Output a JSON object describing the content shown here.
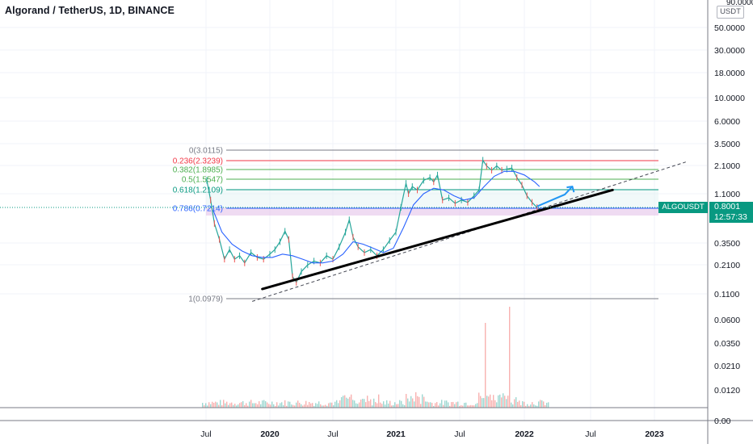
{
  "header": {
    "title": "Algorand / TetherUS, 1D, BINANCE",
    "currency_badge": "USDT"
  },
  "price_tag": {
    "symbol": "ALGOUSDT",
    "price": "0.8001",
    "countdown": "12:57:33",
    "color": "#089981"
  },
  "chart_data": {
    "type": "line",
    "title": "Algorand / TetherUS, 1D, BINANCE",
    "xlabel": "",
    "ylabel": "",
    "y_scale": "log",
    "x_tick_labels": [
      "Jul",
      "2020",
      "Jul",
      "2021",
      "Jul",
      "2022",
      "Jul",
      "2023"
    ],
    "y_tick_labels": [
      "90.0000",
      "50.0000",
      "30.0000",
      "18.0000",
      "10.0000",
      "6.0000",
      "3.5000",
      "2.1000",
      "1.1000",
      "0.3500",
      "0.2100",
      "0.1100"
    ],
    "volume_tick_labels": [
      "0.0600",
      "0.0350",
      "0.0210",
      "0.0120",
      "0.00"
    ],
    "fib_levels": [
      {
        "label": "0(3.0115)",
        "value": 3.0115,
        "color": "#787b86"
      },
      {
        "label": "0.236(2.3239)",
        "value": 2.3239,
        "color": "#f23645"
      },
      {
        "label": "0.382(1.8985)",
        "value": 1.8985,
        "color": "#4caf50"
      },
      {
        "label": "0.5(1.5547)",
        "value": 1.5547,
        "color": "#4caf50"
      },
      {
        "label": "0.618(1.2109)",
        "value": 1.2109,
        "color": "#089981"
      },
      {
        "label": "0.786(0.7214)",
        "value": 0.7214,
        "color": "#2962ff"
      },
      {
        "label": "1(0.0979)",
        "value": 0.0979,
        "color": "#787b86"
      }
    ],
    "series": [
      {
        "values": [
          [
            2019.5,
            1.5
          ],
          [
            2019.53,
            0.95
          ],
          [
            2019.56,
            0.55
          ],
          [
            2019.6,
            0.38
          ],
          [
            2019.64,
            0.24
          ],
          [
            2019.68,
            0.3
          ],
          [
            2019.72,
            0.24
          ],
          [
            2019.76,
            0.26
          ],
          [
            2019.8,
            0.22
          ],
          [
            2019.85,
            0.28
          ],
          [
            2019.9,
            0.25
          ],
          [
            2019.95,
            0.24
          ],
          [
            2020.0,
            0.27
          ],
          [
            2020.04,
            0.3
          ],
          [
            2020.08,
            0.36
          ],
          [
            2020.12,
            0.46
          ],
          [
            2020.15,
            0.38
          ],
          [
            2020.18,
            0.16
          ],
          [
            2020.21,
            0.14
          ],
          [
            2020.25,
            0.18
          ],
          [
            2020.3,
            0.21
          ],
          [
            2020.35,
            0.23
          ],
          [
            2020.4,
            0.22
          ],
          [
            2020.45,
            0.26
          ],
          [
            2020.5,
            0.24
          ],
          [
            2020.55,
            0.32
          ],
          [
            2020.6,
            0.45
          ],
          [
            2020.63,
            0.6
          ],
          [
            2020.66,
            0.4
          ],
          [
            2020.7,
            0.32
          ],
          [
            2020.75,
            0.28
          ],
          [
            2020.8,
            0.3
          ],
          [
            2020.85,
            0.26
          ],
          [
            2020.9,
            0.3
          ],
          [
            2020.95,
            0.37
          ],
          [
            2021.0,
            0.45
          ],
          [
            2021.04,
            0.8
          ],
          [
            2021.08,
            1.4
          ],
          [
            2021.1,
            1.1
          ],
          [
            2021.13,
            1.3
          ],
          [
            2021.17,
            1.2
          ],
          [
            2021.22,
            1.5
          ],
          [
            2021.27,
            1.6
          ],
          [
            2021.3,
            1.45
          ],
          [
            2021.33,
            1.7
          ],
          [
            2021.37,
            0.95
          ],
          [
            2021.42,
            1.0
          ],
          [
            2021.47,
            0.88
          ],
          [
            2021.52,
            0.95
          ],
          [
            2021.57,
            0.9
          ],
          [
            2021.62,
            1.05
          ],
          [
            2021.66,
            1.2
          ],
          [
            2021.69,
            2.4
          ],
          [
            2021.72,
            2.1
          ],
          [
            2021.76,
            1.9
          ],
          [
            2021.8,
            2.1
          ],
          [
            2021.84,
            1.9
          ],
          [
            2021.88,
            1.95
          ],
          [
            2021.92,
            2.0
          ],
          [
            2021.96,
            1.6
          ],
          [
            2022.0,
            1.35
          ],
          [
            2022.04,
            1.05
          ],
          [
            2022.08,
            0.9
          ],
          [
            2022.12,
            0.8
          ]
        ]
      },
      {
        "values": [
          [
            2019.55,
            0.75
          ],
          [
            2019.62,
            0.45
          ],
          [
            2019.7,
            0.34
          ],
          [
            2019.78,
            0.29
          ],
          [
            2019.86,
            0.26
          ],
          [
            2019.94,
            0.25
          ],
          [
            2020.02,
            0.25
          ],
          [
            2020.1,
            0.27
          ],
          [
            2020.18,
            0.26
          ],
          [
            2020.26,
            0.24
          ],
          [
            2020.34,
            0.22
          ],
          [
            2020.42,
            0.22
          ],
          [
            2020.5,
            0.23
          ],
          [
            2020.58,
            0.27
          ],
          [
            2020.66,
            0.36
          ],
          [
            2020.74,
            0.34
          ],
          [
            2020.82,
            0.31
          ],
          [
            2020.9,
            0.28
          ],
          [
            2020.98,
            0.31
          ],
          [
            2021.06,
            0.5
          ],
          [
            2021.14,
            0.85
          ],
          [
            2021.22,
            1.1
          ],
          [
            2021.3,
            1.25
          ],
          [
            2021.38,
            1.2
          ],
          [
            2021.46,
            1.05
          ],
          [
            2021.54,
            0.95
          ],
          [
            2021.62,
            1.0
          ],
          [
            2021.7,
            1.3
          ],
          [
            2021.78,
            1.65
          ],
          [
            2021.86,
            1.85
          ],
          [
            2021.94,
            1.85
          ],
          [
            2022.02,
            1.7
          ],
          [
            2022.1,
            1.45
          ],
          [
            2022.14,
            1.3
          ]
        ]
      }
    ],
    "trend_line": [
      [
        2019.94,
        0.12
      ],
      [
        2022.72,
        1.2
      ]
    ],
    "dashed_line": [
      [
        2019.86,
        0.09
      ],
      [
        2023.3,
        2.3
      ]
    ],
    "projection_arrow": [
      [
        2022.12,
        0.82
      ],
      [
        2022.34,
        1.08
      ],
      [
        2022.4,
        1.3
      ]
    ],
    "x_range": [
      2019.0,
      2023.45
    ],
    "ylim": [
      0.09,
      90
    ]
  }
}
